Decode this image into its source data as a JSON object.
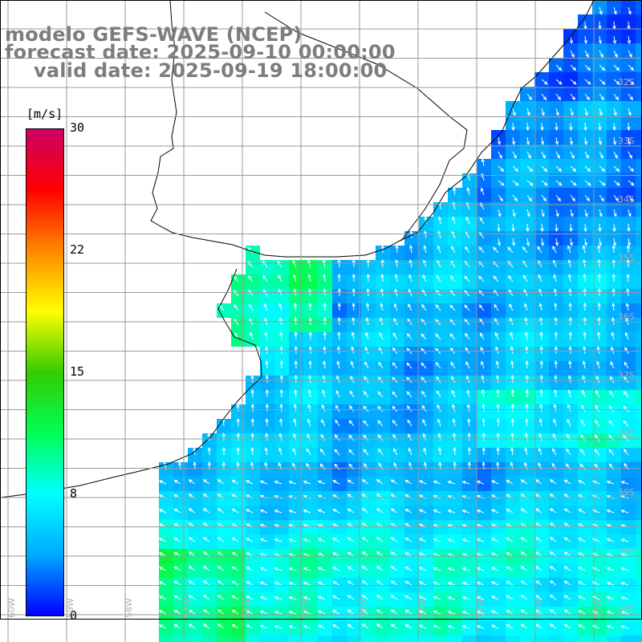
{
  "title": {
    "line1": "modelo GEFS-WAVE (NCEP)",
    "line2": "forecast date: 2025-09-10 00:00:00",
    "line3": "valid date: 2025-09-19 18:00:00"
  },
  "colorbar": {
    "units": "[m/s]",
    "ticks": [
      "30",
      "22",
      "15",
      "8",
      "0"
    ],
    "tick_values": [
      30,
      22,
      15,
      8,
      0
    ],
    "min": 0,
    "max": 30,
    "colors": [
      "#0000ff",
      "#00aaff",
      "#00ffff",
      "#00ff55",
      "#33cc00",
      "#ffff00",
      "#ff8800",
      "#ff0000",
      "#cc0066"
    ]
  },
  "map": {
    "land_color": "#ffffff",
    "grid_color": "#9a9a9a",
    "arrow_color": "#ffffff",
    "lat_labels": [
      "32S",
      "33S",
      "34S",
      "35S",
      "36S",
      "37S",
      "38S",
      "39S",
      "40S",
      "41S"
    ],
    "lon_labels": [
      "60W",
      "59W",
      "58W",
      "57W",
      "56W",
      "55W",
      "54W",
      "53W",
      "52W",
      "51W",
      "50W"
    ]
  }
}
